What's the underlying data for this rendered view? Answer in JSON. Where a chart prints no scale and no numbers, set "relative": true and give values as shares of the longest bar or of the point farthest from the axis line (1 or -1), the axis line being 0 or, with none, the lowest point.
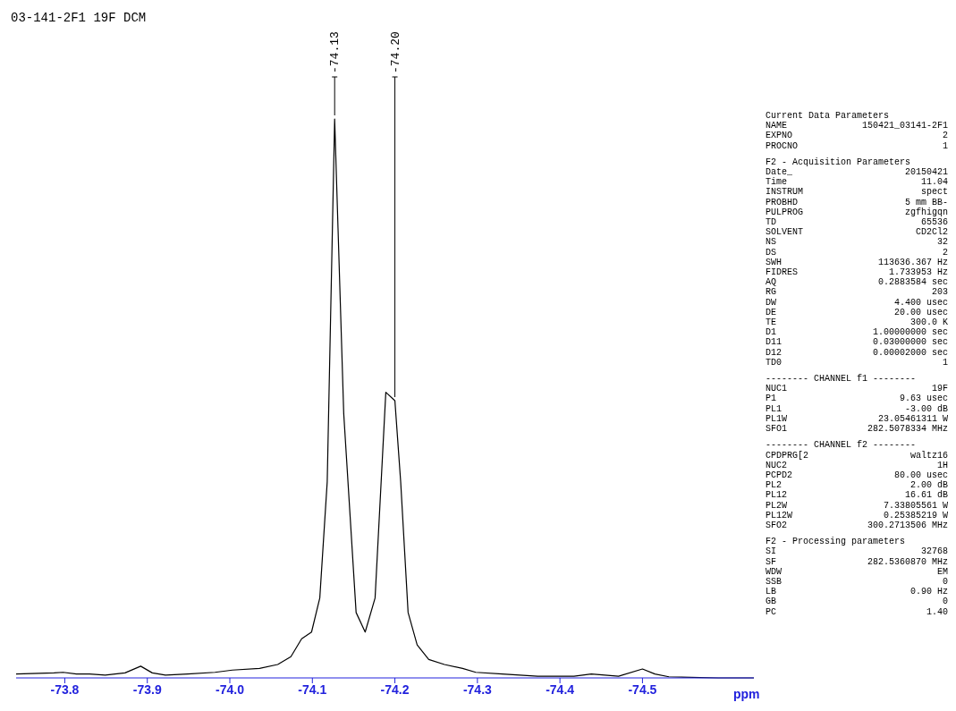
{
  "chart_data": {
    "type": "line",
    "title": "03-141-2F1 19F DCM",
    "xlabel": "ppm",
    "relative": true,
    "color": "#000000",
    "xlim": [
      -73.741,
      -74.635
    ],
    "xticks": [
      -73.8,
      -73.9,
      {
        "value": -74.0,
        "label": "-74.0"
      },
      -74.1,
      -74.2,
      -74.3,
      -74.4,
      -74.5
    ],
    "x": [
      -73.741,
      -73.787,
      -73.798,
      -73.814,
      -73.83,
      -73.849,
      -73.873,
      -73.892,
      -73.906,
      -73.922,
      -73.949,
      -73.982,
      -74.003,
      -74.036,
      -74.058,
      -74.074,
      -74.087,
      -74.099,
      -74.109,
      -74.118,
      -74.127,
      -74.138,
      -74.153,
      -74.164,
      -74.176,
      -74.189,
      -74.2,
      -74.207,
      -74.216,
      -74.227,
      -74.241,
      -74.26,
      -74.282,
      -74.298,
      -74.33,
      -74.373,
      -74.417,
      -74.438,
      -74.471,
      -74.5,
      -74.515,
      -74.532,
      -74.592,
      -74.635
    ],
    "values": [
      0.007,
      0.009,
      0.01,
      0.007,
      0.007,
      0.005,
      0.009,
      0.021,
      0.009,
      0.005,
      0.007,
      0.01,
      0.014,
      0.017,
      0.024,
      0.038,
      0.07,
      0.082,
      0.143,
      0.351,
      1.0,
      0.473,
      0.117,
      0.082,
      0.143,
      0.511,
      0.496,
      0.351,
      0.117,
      0.059,
      0.033,
      0.024,
      0.017,
      0.01,
      0.007,
      0.003,
      0.003,
      0.007,
      0.003,
      0.016,
      0.007,
      0.002,
      0.0,
      0.0
    ],
    "annotations": [
      {
        "text": "-74.13",
        "x": -74.127,
        "y": 1.0
      },
      {
        "text": "-74.20",
        "x": -74.2,
        "y": 0.496
      },
      "Current Data Parameters",
      "NAME  150421_03141-2F1",
      "EXPNO  2",
      "PROCNO  1",
      "F2 - Acquisition Parameters",
      "Date_  20150421",
      "Time  11.04",
      "INSTRUM  spect",
      "PROBHD  5 mm BB-",
      "PULPROG  zgfhigqn",
      "TD  65536",
      "SOLVENT  CD2Cl2",
      "NS  32",
      "DS  2",
      "SWH  113636.367 Hz",
      "FIDRES  1.733953 Hz",
      "AQ  0.2883584 sec",
      "RG  203",
      "DW  4.400 usec",
      "DE  20.00 usec",
      "TE  300.0 K",
      "D1  1.00000000 sec",
      "D11  0.03000000 sec",
      "D12  0.00002000 sec",
      "TD0  1",
      "-------- CHANNEL f1 --------",
      "NUC1  19F",
      "P1  9.63 usec",
      "PL1  -3.00 dB",
      "PL1W  23.05461311 W",
      "SFO1  282.5078334 MHz",
      "-------- CHANNEL f2 --------",
      "CPDPRG[2  waltz16",
      "NUC2  1H",
      "PCPD2  80.00 usec",
      "PL2  2.00 dB",
      "PL12  16.61 dB",
      "PL2W  7.33805561 W",
      "PL12W  0.25385219 W",
      "SFO2  300.2713506 MHz",
      "F2 - Processing parameters",
      "SI  32768",
      "SF  282.5360870 MHz",
      "WDW  EM",
      "SSB  0",
      "LB  0.90 Hz",
      "GB  0",
      "PC  1.40"
    ]
  }
}
